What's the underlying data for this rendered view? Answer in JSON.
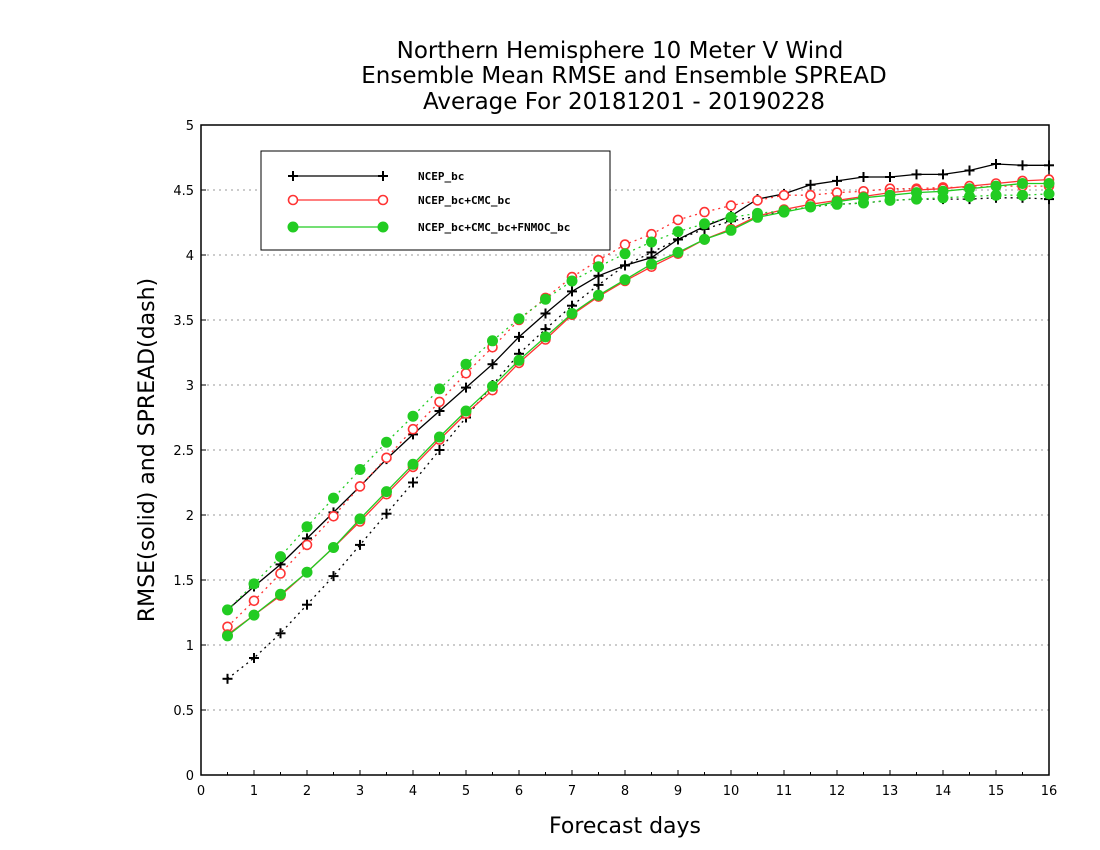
{
  "chart_data": {
    "type": "line",
    "title": [
      "Northern Hemisphere 10 Meter V Wind",
      "Ensemble Mean RMSE and Ensemble SPREAD",
      "Average For 20181201 - 20190228"
    ],
    "xlabel": "Forecast days",
    "ylabel": "RMSE(solid) and SPREAD(dash)",
    "xlim": [
      0,
      16
    ],
    "ylim": [
      0,
      5
    ],
    "xticks": [
      "0",
      "1",
      "2",
      "3",
      "4",
      "5",
      "6",
      "7",
      "8",
      "9",
      "10",
      "11",
      "12",
      "13",
      "14",
      "15",
      "16"
    ],
    "yticks": [
      "0",
      "0.5",
      "1",
      "1.5",
      "2",
      "2.5",
      "3",
      "3.5",
      "4",
      "4.5",
      "5"
    ],
    "grid": "dotted horizontal",
    "legend_position": "top-left",
    "x": [
      0.5,
      1,
      1.5,
      2,
      2.5,
      3,
      3.5,
      4,
      4.5,
      5,
      5.5,
      6,
      6.5,
      7,
      7.5,
      8,
      8.5,
      9,
      9.5,
      10,
      10.5,
      11,
      11.5,
      12,
      12.5,
      13,
      13.5,
      14,
      14.5,
      15,
      15.5,
      16
    ],
    "series": [
      {
        "name": "NCEP_bc",
        "color": "#000000",
        "marker": "plus",
        "rmse": [
          1.27,
          1.45,
          1.62,
          1.82,
          2.02,
          2.22,
          2.43,
          2.62,
          2.8,
          2.98,
          3.16,
          3.37,
          3.55,
          3.72,
          3.84,
          3.92,
          3.98,
          4.12,
          4.22,
          4.3,
          4.43,
          4.47,
          4.54,
          4.57,
          4.6,
          4.6,
          4.62,
          4.62,
          4.65,
          4.7,
          4.69,
          4.69
        ],
        "spread": [
          0.74,
          0.9,
          1.09,
          1.31,
          1.53,
          1.77,
          2.01,
          2.25,
          2.5,
          2.75,
          3.0,
          3.24,
          3.43,
          3.61,
          3.77,
          3.92,
          4.02,
          4.12,
          4.2,
          4.26,
          4.3,
          4.34,
          4.37,
          4.39,
          4.4,
          4.42,
          4.43,
          4.43,
          4.43,
          4.44,
          4.44,
          4.43
        ]
      },
      {
        "name": "NCEP_bc+CMC_bc",
        "color": "#ff3333",
        "marker": "open-circle",
        "rmse": [
          1.08,
          1.23,
          1.38,
          1.56,
          1.75,
          1.95,
          2.16,
          2.37,
          2.58,
          2.78,
          2.96,
          3.17,
          3.35,
          3.54,
          3.68,
          3.8,
          3.91,
          4.01,
          4.12,
          4.2,
          4.3,
          4.35,
          4.39,
          4.42,
          4.45,
          4.48,
          4.5,
          4.51,
          4.53,
          4.55,
          4.57,
          4.58
        ],
        "spread": [
          1.14,
          1.34,
          1.55,
          1.77,
          1.99,
          2.22,
          2.44,
          2.66,
          2.87,
          3.09,
          3.29,
          3.5,
          3.67,
          3.83,
          3.96,
          4.08,
          4.16,
          4.27,
          4.33,
          4.38,
          4.42,
          4.46,
          4.46,
          4.48,
          4.49,
          4.51,
          4.51,
          4.52,
          4.52,
          4.53,
          4.53,
          4.53
        ]
      },
      {
        "name": "NCEP_bc+CMC_bc+FNMOC_bc",
        "color": "#22cc22",
        "marker": "filled-circle",
        "rmse": [
          1.07,
          1.23,
          1.39,
          1.56,
          1.75,
          1.97,
          2.18,
          2.39,
          2.6,
          2.8,
          2.99,
          3.19,
          3.37,
          3.55,
          3.69,
          3.81,
          3.93,
          4.02,
          4.12,
          4.19,
          4.29,
          4.33,
          4.37,
          4.41,
          4.44,
          4.46,
          4.48,
          4.49,
          4.51,
          4.53,
          4.55,
          4.55
        ],
        "spread": [
          1.27,
          1.47,
          1.68,
          1.91,
          2.13,
          2.35,
          2.56,
          2.76,
          2.97,
          3.16,
          3.34,
          3.51,
          3.66,
          3.8,
          3.91,
          4.01,
          4.1,
          4.18,
          4.24,
          4.29,
          4.32,
          4.34,
          4.37,
          4.39,
          4.4,
          4.42,
          4.43,
          4.44,
          4.45,
          4.46,
          4.46,
          4.47
        ]
      }
    ]
  }
}
